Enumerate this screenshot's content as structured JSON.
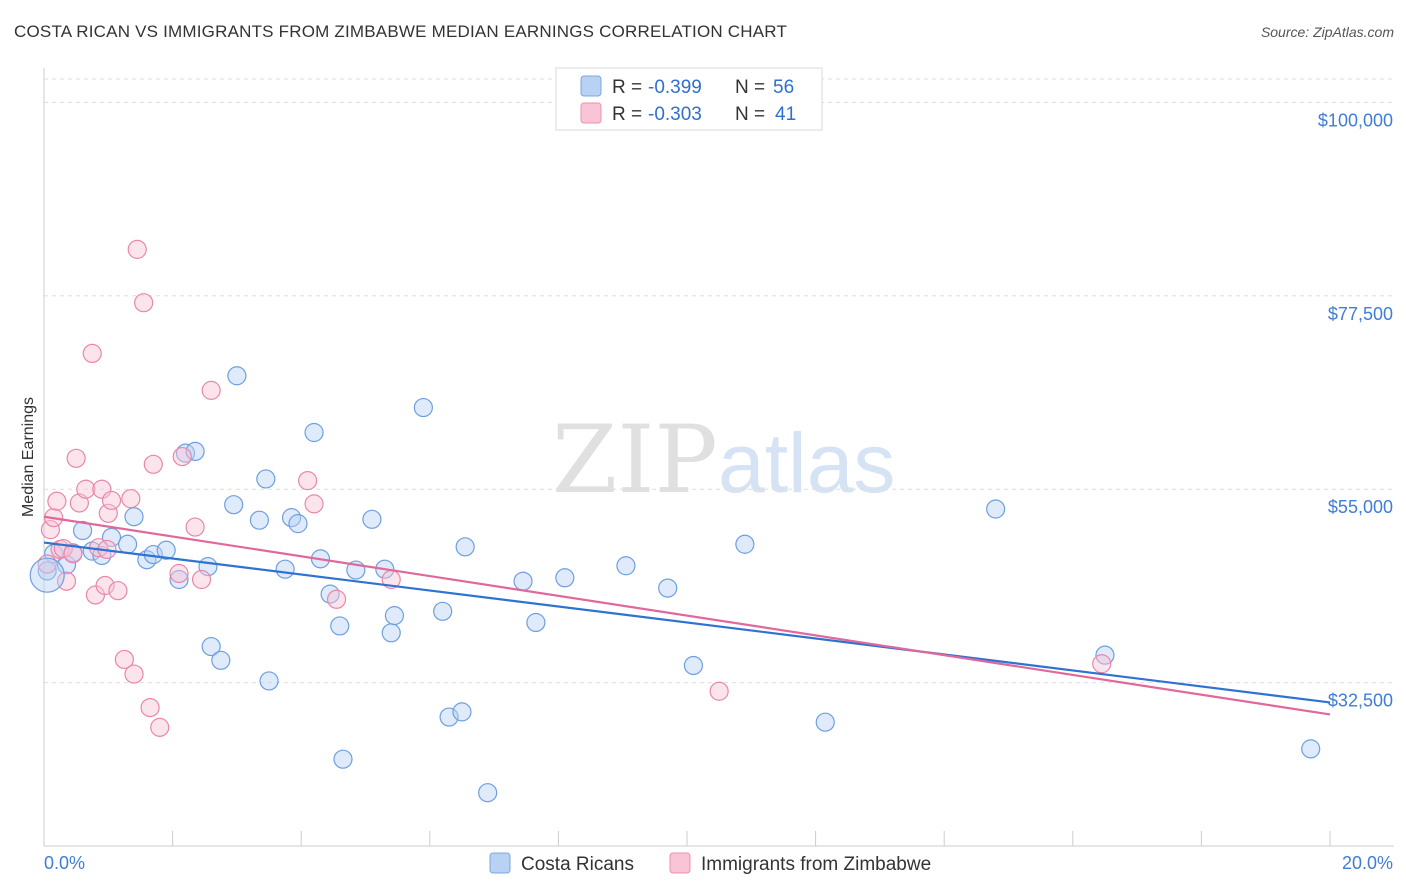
{
  "title": "COSTA RICAN VS IMMIGRANTS FROM ZIMBABWE MEDIAN EARNINGS CORRELATION CHART",
  "source": "Source: ZipAtlas.com",
  "watermark": {
    "zip": "ZIP",
    "atlas": "atlas"
  },
  "chart_data": {
    "type": "scatter",
    "xlabel": "",
    "ylabel": "Median Earnings",
    "xlim": [
      0,
      20
    ],
    "ylim": [
      13500,
      104000
    ],
    "x_tick_labels": [
      "0.0%",
      "20.0%"
    ],
    "y_ticks": [
      32500,
      55000,
      77500,
      100000
    ],
    "y_tick_labels": [
      "$32,500",
      "$55,000",
      "$77,500",
      "$100,000"
    ],
    "legend": [
      {
        "name": "Costa Ricans",
        "r_label": "R =",
        "r": "-0.399",
        "n_label": "N =",
        "n": "56",
        "color": "#7aa7e6",
        "fill": "#b9d1f3"
      },
      {
        "name": "Immigrants from Zimbabwe",
        "r_label": "R =",
        "r": "-0.303",
        "n_label": "N =",
        "n": "41",
        "color": "#ec8fb0",
        "fill": "#f8c4d6"
      }
    ],
    "series": [
      {
        "name": "Costa Ricans",
        "color": "#6d9fe0",
        "line_color": "#2f72d0",
        "trend": {
          "x": [
            0,
            20
          ],
          "y": [
            48800,
            30200
          ]
        },
        "points": [
          [
            0.05,
            45500
          ],
          [
            0.15,
            47500
          ],
          [
            0.35,
            46200
          ],
          [
            0.45,
            47600
          ],
          [
            0.6,
            50200
          ],
          [
            0.75,
            47800
          ],
          [
            0.9,
            47300
          ],
          [
            1.05,
            49400
          ],
          [
            1.3,
            48600
          ],
          [
            1.4,
            51800
          ],
          [
            1.6,
            46800
          ],
          [
            1.7,
            47400
          ],
          [
            1.9,
            47900
          ],
          [
            2.1,
            44500
          ],
          [
            2.2,
            59200
          ],
          [
            2.35,
            59400
          ],
          [
            2.55,
            46000
          ],
          [
            2.6,
            36700
          ],
          [
            2.75,
            35100
          ],
          [
            2.95,
            53200
          ],
          [
            3.0,
            68200
          ],
          [
            3.35,
            51400
          ],
          [
            3.45,
            56200
          ],
          [
            3.5,
            32700
          ],
          [
            3.75,
            45700
          ],
          [
            3.85,
            51700
          ],
          [
            3.95,
            51000
          ],
          [
            4.2,
            61600
          ],
          [
            4.3,
            46900
          ],
          [
            4.45,
            42800
          ],
          [
            4.6,
            39100
          ],
          [
            4.65,
            23600
          ],
          [
            4.85,
            45600
          ],
          [
            5.1,
            51500
          ],
          [
            5.3,
            45700
          ],
          [
            5.4,
            38300
          ],
          [
            5.45,
            40300
          ],
          [
            5.9,
            64500
          ],
          [
            6.2,
            40800
          ],
          [
            6.3,
            28500
          ],
          [
            6.5,
            29100
          ],
          [
            6.55,
            48300
          ],
          [
            6.9,
            19700
          ],
          [
            7.45,
            44300
          ],
          [
            7.65,
            39500
          ],
          [
            8.1,
            44700
          ],
          [
            9.05,
            46100
          ],
          [
            9.7,
            43500
          ],
          [
            10.1,
            34500
          ],
          [
            10.9,
            48600
          ],
          [
            12.15,
            27900
          ],
          [
            14.8,
            52700
          ],
          [
            16.5,
            35700
          ],
          [
            19.7,
            24800
          ]
        ]
      },
      {
        "name": "Immigrants from Zimbabwe",
        "color": "#e987a9",
        "line_color": "#e0689a",
        "trend": {
          "x": [
            0,
            20
          ],
          "y": [
            51800,
            28800
          ]
        },
        "points": [
          [
            0.05,
            46300
          ],
          [
            0.1,
            50300
          ],
          [
            0.15,
            51700
          ],
          [
            0.2,
            53600
          ],
          [
            0.25,
            48000
          ],
          [
            0.3,
            48100
          ],
          [
            0.35,
            44300
          ],
          [
            0.45,
            47500
          ],
          [
            0.5,
            58600
          ],
          [
            0.55,
            53400
          ],
          [
            0.65,
            55000
          ],
          [
            0.75,
            70800
          ],
          [
            0.8,
            42700
          ],
          [
            0.85,
            48200
          ],
          [
            0.9,
            55000
          ],
          [
            0.95,
            43800
          ],
          [
            0.98,
            48000
          ],
          [
            1.0,
            52200
          ],
          [
            1.05,
            53700
          ],
          [
            1.15,
            43200
          ],
          [
            1.25,
            35200
          ],
          [
            1.35,
            53900
          ],
          [
            1.4,
            33500
          ],
          [
            1.45,
            82900
          ],
          [
            1.55,
            76700
          ],
          [
            1.65,
            29600
          ],
          [
            1.7,
            57900
          ],
          [
            1.8,
            27300
          ],
          [
            2.1,
            45200
          ],
          [
            2.15,
            58800
          ],
          [
            2.35,
            50600
          ],
          [
            2.45,
            44500
          ],
          [
            2.6,
            66500
          ],
          [
            4.1,
            56000
          ],
          [
            4.2,
            53300
          ],
          [
            4.55,
            42200
          ],
          [
            5.4,
            44500
          ],
          [
            10.5,
            31500
          ],
          [
            16.45,
            34700
          ]
        ]
      }
    ]
  }
}
